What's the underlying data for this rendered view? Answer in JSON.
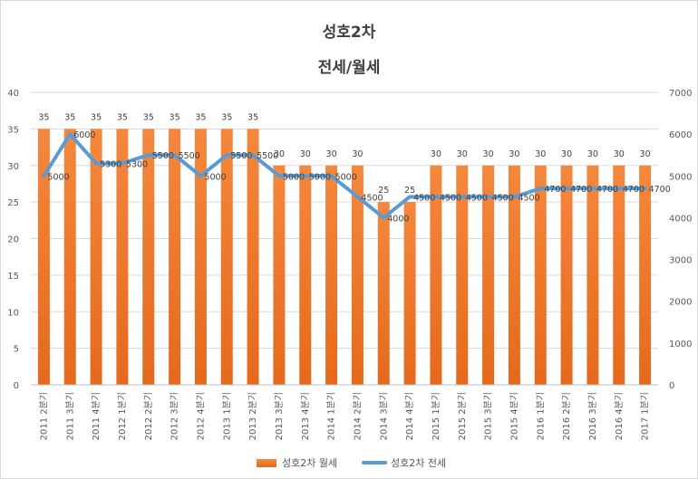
{
  "chart_data": {
    "type": "bar",
    "title": "성호2차",
    "subtitle": "전세/월세",
    "categories": [
      "2011 2분기",
      "2011 3분기",
      "2011 4분기",
      "2012 1분기",
      "2012 2분기",
      "2012 3분기",
      "2012 4분기",
      "2013 1분기",
      "2013 2분기",
      "2013 3분기",
      "2013 4분기",
      "2014 1분기",
      "2014 2분기",
      "2014 3분기",
      "2014 4분기",
      "2015 1분기",
      "2015 2분기",
      "2015 3분기",
      "2015 4분기",
      "2016 1분기",
      "2016 2분기",
      "2016 3분기",
      "2016 4분기",
      "2017 1분기"
    ],
    "series": [
      {
        "name": "성호2차 월세",
        "type": "bar",
        "axis": "left",
        "color": "#ED7D31",
        "values": [
          35,
          35,
          35,
          35,
          35,
          35,
          35,
          35,
          35,
          30,
          30,
          30,
          30,
          25,
          25,
          30,
          30,
          30,
          30,
          30,
          30,
          30,
          30,
          30
        ]
      },
      {
        "name": "성호2차 전세",
        "type": "line",
        "axis": "right",
        "color": "#5B9BD5",
        "values": [
          5000,
          6000,
          5300,
          5300,
          5500,
          5500,
          5000,
          5500,
          5500,
          5000,
          5000,
          5000,
          4500,
          4000,
          4500,
          4500,
          4500,
          4500,
          4500,
          4700,
          4700,
          4700,
          4700,
          4700
        ]
      }
    ],
    "ylim_left": [
      0,
      40
    ],
    "yticks_left": [
      "0",
      "5",
      "10",
      "15",
      "20",
      "25",
      "30",
      "35",
      "40"
    ],
    "ylim_right": [
      0,
      7000
    ],
    "yticks_right": [
      "0",
      "1000",
      "2000",
      "3000",
      "4000",
      "5000",
      "6000",
      "7000"
    ],
    "grid": true,
    "legend_position": "bottom"
  }
}
